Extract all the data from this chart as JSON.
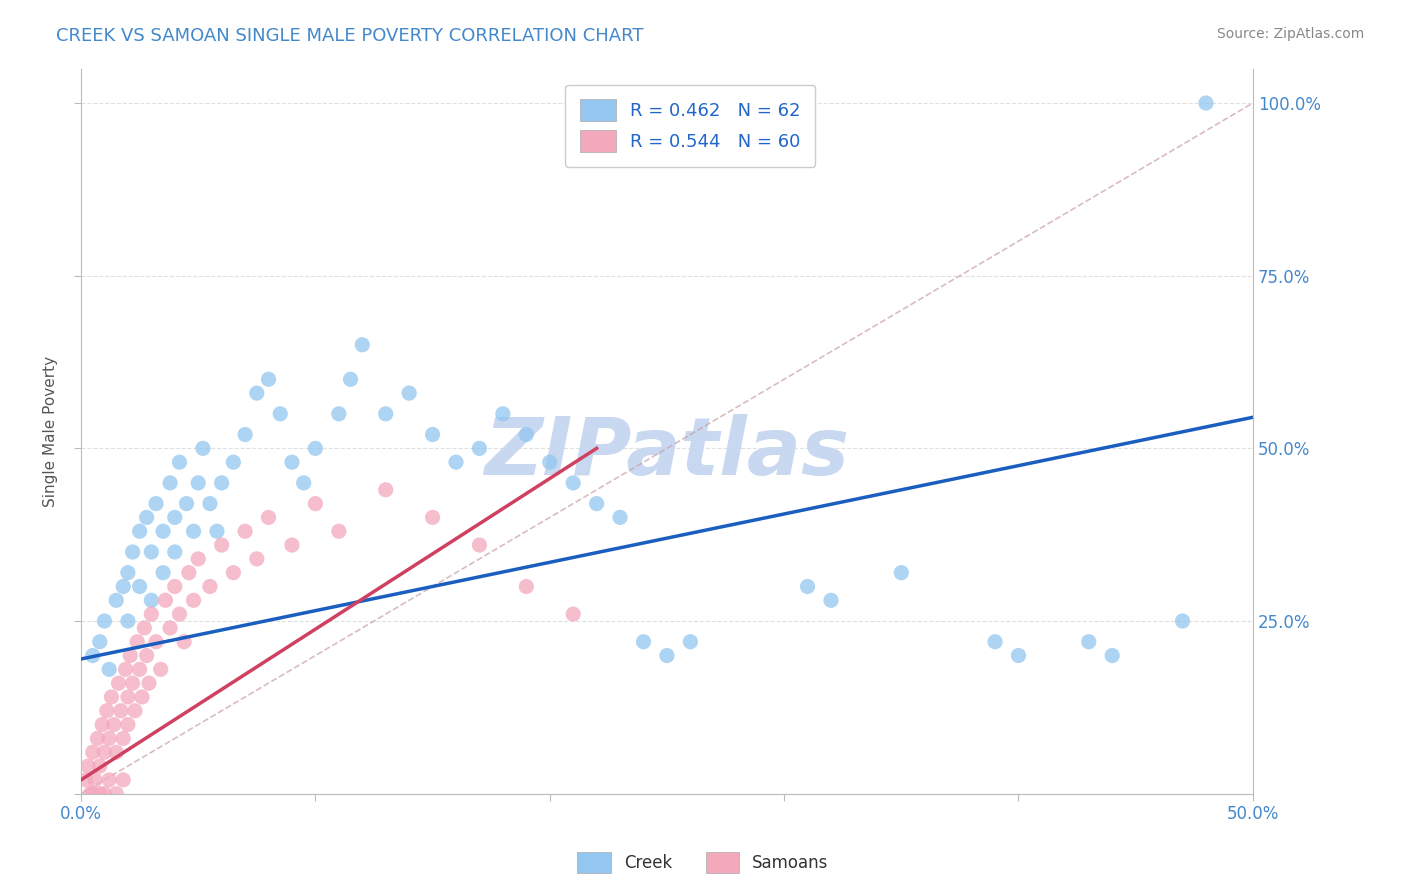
{
  "title": "CREEK VS SAMOAN SINGLE MALE POVERTY CORRELATION CHART",
  "source": "Source: ZipAtlas.com",
  "ylabel": "Single Male Poverty",
  "xlim": [
    0.0,
    0.5
  ],
  "ylim": [
    0.0,
    1.05
  ],
  "creek_R": 0.462,
  "creek_N": 62,
  "samoan_R": 0.544,
  "samoan_N": 60,
  "creek_color": "#93C6F0",
  "samoan_color": "#F4A8BC",
  "creek_line_color": "#1A5FBF",
  "samoan_line_color": "#D04060",
  "creek_line": [
    0.0,
    0.195,
    0.5,
    0.545
  ],
  "samoan_line": [
    0.0,
    0.02,
    0.22,
    0.5
  ],
  "diag_line": [
    0.0,
    0.0,
    0.5,
    1.0
  ],
  "creek_scatter": [
    [
      0.005,
      0.2
    ],
    [
      0.008,
      0.22
    ],
    [
      0.01,
      0.25
    ],
    [
      0.012,
      0.18
    ],
    [
      0.015,
      0.28
    ],
    [
      0.018,
      0.3
    ],
    [
      0.02,
      0.32
    ],
    [
      0.02,
      0.25
    ],
    [
      0.022,
      0.35
    ],
    [
      0.025,
      0.38
    ],
    [
      0.025,
      0.3
    ],
    [
      0.028,
      0.4
    ],
    [
      0.03,
      0.35
    ],
    [
      0.03,
      0.28
    ],
    [
      0.032,
      0.42
    ],
    [
      0.035,
      0.38
    ],
    [
      0.035,
      0.32
    ],
    [
      0.038,
      0.45
    ],
    [
      0.04,
      0.4
    ],
    [
      0.04,
      0.35
    ],
    [
      0.042,
      0.48
    ],
    [
      0.045,
      0.42
    ],
    [
      0.048,
      0.38
    ],
    [
      0.05,
      0.45
    ],
    [
      0.052,
      0.5
    ],
    [
      0.055,
      0.42
    ],
    [
      0.058,
      0.38
    ],
    [
      0.06,
      0.45
    ],
    [
      0.065,
      0.48
    ],
    [
      0.07,
      0.52
    ],
    [
      0.075,
      0.58
    ],
    [
      0.08,
      0.6
    ],
    [
      0.085,
      0.55
    ],
    [
      0.09,
      0.48
    ],
    [
      0.095,
      0.45
    ],
    [
      0.1,
      0.5
    ],
    [
      0.11,
      0.55
    ],
    [
      0.115,
      0.6
    ],
    [
      0.12,
      0.65
    ],
    [
      0.13,
      0.55
    ],
    [
      0.14,
      0.58
    ],
    [
      0.15,
      0.52
    ],
    [
      0.16,
      0.48
    ],
    [
      0.17,
      0.5
    ],
    [
      0.18,
      0.55
    ],
    [
      0.19,
      0.52
    ],
    [
      0.2,
      0.48
    ],
    [
      0.21,
      0.45
    ],
    [
      0.22,
      0.42
    ],
    [
      0.23,
      0.4
    ],
    [
      0.24,
      0.22
    ],
    [
      0.25,
      0.2
    ],
    [
      0.26,
      0.22
    ],
    [
      0.31,
      0.3
    ],
    [
      0.32,
      0.28
    ],
    [
      0.35,
      0.32
    ],
    [
      0.39,
      0.22
    ],
    [
      0.4,
      0.2
    ],
    [
      0.43,
      0.22
    ],
    [
      0.44,
      0.2
    ],
    [
      0.47,
      0.25
    ],
    [
      0.48,
      1.0
    ]
  ],
  "samoan_scatter": [
    [
      0.002,
      0.02
    ],
    [
      0.003,
      0.04
    ],
    [
      0.004,
      0.0
    ],
    [
      0.005,
      0.06
    ],
    [
      0.005,
      0.0
    ],
    [
      0.006,
      0.02
    ],
    [
      0.007,
      0.08
    ],
    [
      0.008,
      0.04
    ],
    [
      0.008,
      0.0
    ],
    [
      0.009,
      0.1
    ],
    [
      0.01,
      0.06
    ],
    [
      0.01,
      0.0
    ],
    [
      0.011,
      0.12
    ],
    [
      0.012,
      0.08
    ],
    [
      0.012,
      0.02
    ],
    [
      0.013,
      0.14
    ],
    [
      0.014,
      0.1
    ],
    [
      0.015,
      0.06
    ],
    [
      0.015,
      0.0
    ],
    [
      0.016,
      0.16
    ],
    [
      0.017,
      0.12
    ],
    [
      0.018,
      0.08
    ],
    [
      0.018,
      0.02
    ],
    [
      0.019,
      0.18
    ],
    [
      0.02,
      0.14
    ],
    [
      0.02,
      0.1
    ],
    [
      0.021,
      0.2
    ],
    [
      0.022,
      0.16
    ],
    [
      0.023,
      0.12
    ],
    [
      0.024,
      0.22
    ],
    [
      0.025,
      0.18
    ],
    [
      0.026,
      0.14
    ],
    [
      0.027,
      0.24
    ],
    [
      0.028,
      0.2
    ],
    [
      0.029,
      0.16
    ],
    [
      0.03,
      0.26
    ],
    [
      0.032,
      0.22
    ],
    [
      0.034,
      0.18
    ],
    [
      0.036,
      0.28
    ],
    [
      0.038,
      0.24
    ],
    [
      0.04,
      0.3
    ],
    [
      0.042,
      0.26
    ],
    [
      0.044,
      0.22
    ],
    [
      0.046,
      0.32
    ],
    [
      0.048,
      0.28
    ],
    [
      0.05,
      0.34
    ],
    [
      0.055,
      0.3
    ],
    [
      0.06,
      0.36
    ],
    [
      0.065,
      0.32
    ],
    [
      0.07,
      0.38
    ],
    [
      0.075,
      0.34
    ],
    [
      0.08,
      0.4
    ],
    [
      0.09,
      0.36
    ],
    [
      0.1,
      0.42
    ],
    [
      0.11,
      0.38
    ],
    [
      0.13,
      0.44
    ],
    [
      0.15,
      0.4
    ],
    [
      0.17,
      0.36
    ],
    [
      0.19,
      0.3
    ],
    [
      0.21,
      0.26
    ]
  ],
  "watermark": "ZIPatlas",
  "watermark_color": "#C8D8F0",
  "background_color": "#FFFFFF",
  "grid_color": "#DDDDDD"
}
